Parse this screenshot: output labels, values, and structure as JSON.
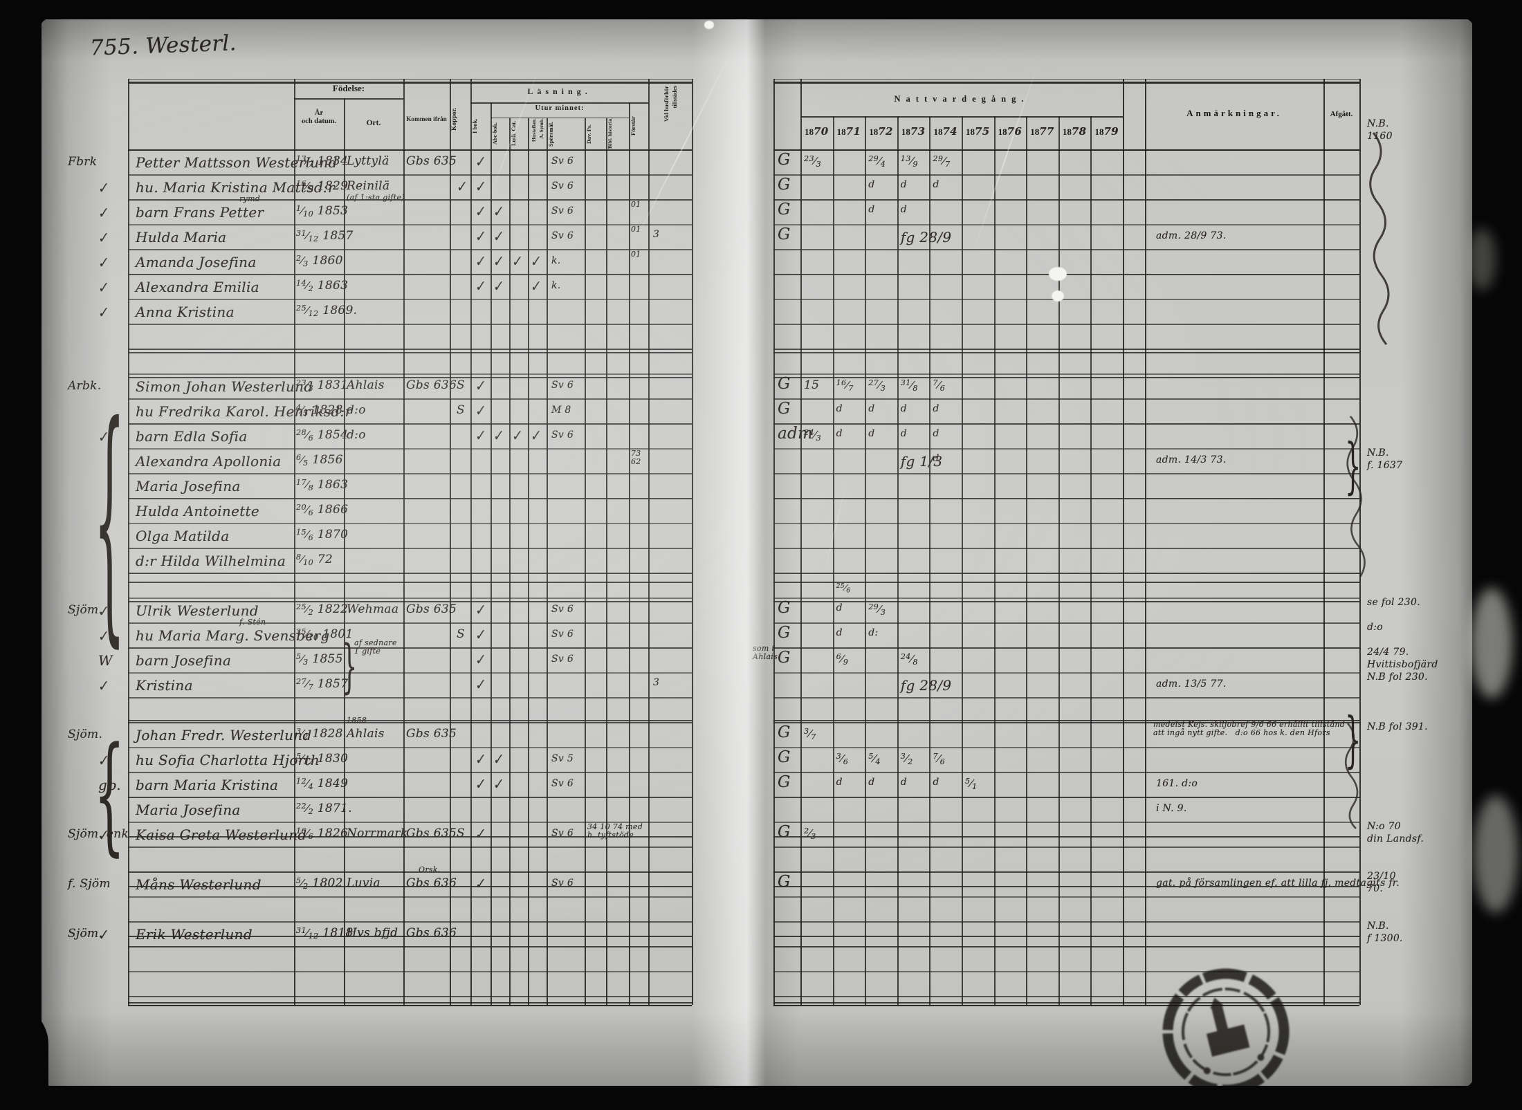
{
  "title": "755. Westerl.",
  "left_headers": {
    "fodelse": "Födelse:",
    "ar_och_datum": "År\noch datum.",
    "ort": "Ort.",
    "kommen_ifran": "Kommen ifrån",
    "koppor": "Koppor.",
    "lasning": "Läsning.",
    "utur_minnet": "Utur minnet:",
    "i_bok": "I bok.",
    "abc_bok": "Abc-bok.",
    "luth_cat": "Luth. Cat.",
    "hustaflan": [
      "Hustaflan.",
      "A. Symb."
    ],
    "sporsmal": "Spörsmål.",
    "dav_ps": "Dav. Ps.",
    "bibl_historia": "Bibl. historia.",
    "forstar": "Förstår",
    "vid_husforhor": [
      "Vid husförhör",
      "tillstädes"
    ]
  },
  "right_headers": {
    "nattvardegang": "Nattvardegång.",
    "years": [
      "1870",
      "1871",
      "1872",
      "1873",
      "1874",
      "1875",
      "1876",
      "1877",
      "1878",
      "1879"
    ],
    "anmarkningar": "Anmärkningar.",
    "afgatt": "Afgått."
  },
  "blocks": [
    {
      "label": "Fbrk",
      "rows": [
        {
          "name": "Petter Mattsson Westerlund",
          "born": "13/7 1834",
          "ort": "Lyttylä",
          "kommen": "Gbs 635",
          "ibok": "✓",
          "sporsmal": "Sv 6",
          "natt": {
            "pre": "G",
            "1870": "23/3",
            "1872": "29/4",
            "1873": "13/9",
            "1874": "29/7"
          },
          "notes": [
            "N.B.",
            "1160"
          ]
        },
        {
          "check": "✓",
          "name": "hu. Maria Kristina Mattsd:r",
          "born": "16/9 1829",
          "ort": "Reinilä",
          "koppor": "✓",
          "ibok": "✓",
          "sporsmal": "Sv 6",
          "natt": {
            "pre": "G",
            "1872": "d",
            "1873": "d",
            "1874": "d"
          }
        },
        {
          "check": "✓",
          "name": "barn Frans Petter",
          "name_note": "rymd",
          "ort_note": "(af 1:sta gifte)",
          "born": "1/10 1853",
          "ibok": "✓",
          "abc": "✓",
          "sporsmal": "Sv 6",
          "forstar": "01",
          "natt": {
            "pre": "G",
            "1872": "d",
            "1873": "d"
          }
        },
        {
          "check": "✓",
          "name": "Hulda Maria",
          "born": "31/12 1857",
          "ibok": "✓",
          "abc": "✓",
          "sporsmal": "Sv 6",
          "forstar": "01",
          "vidhusf": "3",
          "natt": {
            "pre": "G",
            "1873": "fg 28/9"
          },
          "anm": "adm. 28/9 73."
        },
        {
          "check": "✓",
          "name": "Amanda Josefina",
          "born": "2/3 1860",
          "ibok": "✓",
          "abc": "✓",
          "luth": "✓",
          "asymb": "✓",
          "sporsmal": "k.",
          "forstar": "01"
        },
        {
          "check": "✓",
          "name": "Alexandra Emilia",
          "born": "14/2 1863",
          "ibok": "✓",
          "abc": "✓",
          "asymb": "✓",
          "sporsmal": "k."
        },
        {
          "check": "✓",
          "name": "Anna Kristina",
          "born": "25/12 1869."
        }
      ]
    },
    {
      "label": "Arbk.",
      "brace": true,
      "rows": [
        {
          "name": "Simon Johan Westerlund",
          "born": "23/3 1831",
          "ort": "Ahlais",
          "kommen": "Gbs 636",
          "koppor": "S",
          "ibok": "✓",
          "sporsmal": "Sv 6",
          "natt": {
            "pre": "G",
            "1870": "15",
            "1871": "16/7",
            "1872": "27/3",
            "1873": "31/8",
            "1874": "7/6"
          }
        },
        {
          "name": "hu Fredrika Karol. Henriksd:r",
          "born": "4/5 1828",
          "ort": "d:o",
          "koppor": "S",
          "ibok": "✓",
          "sporsmal": "M 8",
          "natt": {
            "pre": "G",
            "1871": "d",
            "1872": "d",
            "1873": "d",
            "1874": "d"
          }
        },
        {
          "check": "✓",
          "name": "barn Edla Sofia",
          "born": "28/6 1854",
          "ort": "d:o",
          "ibok": "✓",
          "abc": "✓",
          "luth": "✓",
          "asymb": "✓",
          "sporsmal": "Sv 6",
          "natt": {
            "pre": "adm",
            "1870": "24/3",
            "1871": "d",
            "1872": "d",
            "1873": "d",
            "1874": "d"
          }
        },
        {
          "name": "Alexandra Apollonia",
          "born": "6/5 1856",
          "forstar": "73\n62",
          "natt": {
            "1873": "fg 1/3",
            "1874": "d"
          },
          "anm": "adm. 14/3 73.",
          "notes": [
            "N.B.",
            "f. 1637"
          ],
          "brace_note": true
        },
        {
          "name": "Maria Josefina",
          "born": "17/8 1863"
        },
        {
          "name": "Hulda Antoinette",
          "born": "20/6 1866"
        },
        {
          "name": "Olga Matilda",
          "born": "15/6 1870"
        },
        {
          "name": "d:r Hilda Wilhelmina",
          "born": "8/10 72"
        }
      ]
    },
    {
      "label": "Sjöm.",
      "rows": [
        {
          "check": "✓",
          "name": "Ulrik Westerlund",
          "born": "25/2 1822",
          "ort": "Wehmaa",
          "kommen": "Gbs 635",
          "ibok": "✓",
          "sporsmal": "Sv 6",
          "natt": {
            "pre": "G",
            "1871": "d",
            "1872": "29/3"
          },
          "natt_above": {
            "1871": "25/6"
          },
          "notes": [
            "se fol 230."
          ]
        },
        {
          "check": "✓",
          "name": "hu Maria Marg. Svensberg",
          "name_note": "f. Stén",
          "born": "25/10 1801",
          "koppor": "S",
          "ibok": "✓",
          "sporsmal": "Sv 6",
          "natt": {
            "pre": "G",
            "1871": "d",
            "1872": "d:"
          },
          "notes": [
            "d:o"
          ]
        },
        {
          "check": "W",
          "name": "barn Josefina",
          "born": "5/3 1855",
          "brace2": [
            "af sednare",
            "1 gifte"
          ],
          "ibok": "✓",
          "sporsmal": "Sv 6",
          "natt": {
            "prenote": "som i\nAhlais",
            "pre": "G",
            "1871": "6/9",
            "1873": "24/8"
          },
          "notes": [
            "24/4 79.",
            "Hvittisbofjärd"
          ]
        },
        {
          "check": "✓",
          "name": "Kristina",
          "born": "27/7 1857",
          "ibok": "✓",
          "vidhusf": "3",
          "natt": {
            "1873": "fg 28/9"
          },
          "anm": "adm. 13/5 77.",
          "notes": [
            "N.B fol 230."
          ]
        }
      ]
    },
    {
      "label": "Sjöm.",
      "brace": true,
      "rows": [
        {
          "name": "Johan Fredr. Westerlund",
          "born": "3/2 1828",
          "ort": "Ahlais",
          "ort_note": "1858",
          "kommen": "Gbs 635",
          "natt": {
            "pre": "G",
            "1870": "3/7"
          },
          "anm_lines": [
            "medelst Kejs. skiljobref 9/6 66 erhållit tillstånd",
            "att ingå nytt gifte.   d:o 66 hos k. den Hfors"
          ],
          "notes": [
            "N.B fol 391."
          ],
          "brace_note": true
        },
        {
          "check": "✓",
          "name": "hu Sofia Charlotta Hjorth",
          "born": "5/12 1830",
          "ibok": "✓",
          "abc": "✓",
          "sporsmal": "Sv 5",
          "natt": {
            "pre": "G",
            "1871": "3/6",
            "1872": "5/4",
            "1873": "3/2",
            "1874": "7/6"
          }
        },
        {
          "check": "gp.",
          "name": "barn Maria Kristina",
          "born": "12/4 1849",
          "ibok": "✓",
          "abc": "✓",
          "sporsmal": "Sv 6",
          "natt": {
            "pre": "G",
            "1871": "d",
            "1872": "d",
            "1873": "d",
            "1874": "d",
            "1875": "5/1"
          },
          "anm": "161.      d:o"
        },
        {
          "name": "Maria Josefina",
          "born": "22/2 1871.",
          "anm": "i N. 9."
        }
      ]
    },
    {
      "label": "Sjöm. enk",
      "rows": [
        {
          "check": "✓",
          "name": "Kaisa Greta Westerlund",
          "born": "16/6 1826",
          "ort": "Norrmark",
          "kommen": "Gbs 635",
          "koppor": "S",
          "ibok": "✓",
          "sporsmal": "Sv 6",
          "small_note": "34 10 74 med\nh. tyftstöde",
          "natt": {
            "pre": "G",
            "1870": "2/3"
          },
          "notes": [
            "N:o 70",
            "din Landsf."
          ]
        }
      ]
    },
    {
      "label": "f. Sjöm",
      "rows": [
        {
          "name": "Måns Westerlund",
          "born": "5/2 1802",
          "ort": "Luvia",
          "kommen": "Gbs 636",
          "kommen_note": "Orsk.",
          "ibok": "✓",
          "sporsmal": "Sv 6",
          "natt": {
            "pre": "G"
          },
          "anm": "gat. på församlingen ef. att lilla fj. medtagits fr.",
          "notes": [
            "23/10",
            "70."
          ]
        }
      ]
    },
    {
      "label": "Sjöm.",
      "rows": [
        {
          "check": "✓",
          "name": "Erik Westerlund",
          "born": "31/12 1818",
          "ort": "Hvs bfjd",
          "kommen": "Gbs 636",
          "notes": [
            "N.B.",
            "f 1300."
          ]
        }
      ]
    }
  ]
}
